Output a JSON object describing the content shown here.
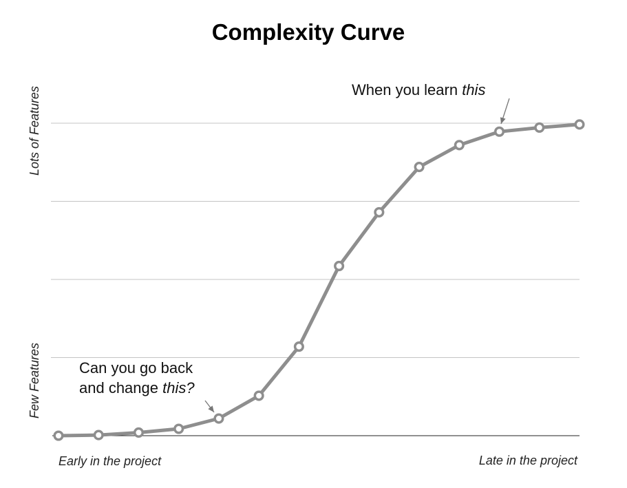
{
  "chart_data": {
    "type": "line",
    "title": "Complexity Curve",
    "y_axis": {
      "low_label": "Few Features",
      "high_label": "Lots of Features",
      "range": [
        0,
        100
      ],
      "gridlines": [
        25,
        50,
        75,
        100
      ]
    },
    "x_axis": {
      "left_label": "Early in the project",
      "right_label": "Late in the project"
    },
    "x": [
      1,
      2,
      3,
      4,
      5,
      6,
      7,
      8,
      9,
      10,
      11,
      12,
      13,
      14
    ],
    "series": [
      {
        "values": [
          0,
          0.2,
          1.0,
          2.2,
          5.5,
          12.8,
          28.5,
          54.3,
          71.5,
          86.0,
          93.0,
          97.3,
          98.6,
          99.6
        ]
      }
    ],
    "grid": true,
    "annotations": [
      {
        "lines": [
          [
            {
              "t": "Can you go back",
              "i": false
            }
          ],
          [
            {
              "t": "and change ",
              "i": false
            },
            {
              "t": "this?",
              "i": true
            }
          ]
        ],
        "target_index": 4
      },
      {
        "lines": [
          [
            {
              "t": "When you learn ",
              "i": false
            },
            {
              "t": "this",
              "i": true
            }
          ]
        ],
        "target_index": 11
      }
    ]
  },
  "colors": {
    "line": "#8e8e8e",
    "grid": "#c4c4c4",
    "axis": "#222222",
    "marker_fill": "#ffffff"
  }
}
